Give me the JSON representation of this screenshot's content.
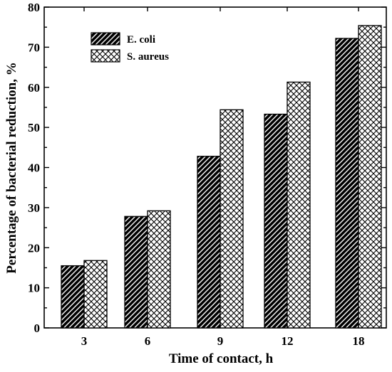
{
  "chart_data": {
    "type": "bar",
    "categories": [
      "3",
      "6",
      "9",
      "12",
      "18"
    ],
    "series": [
      {
        "name": "E. coli",
        "values": [
          15.5,
          27.8,
          42.8,
          53.3,
          72.2
        ],
        "pattern": "dense-diagonal-hatch",
        "color": "#000000"
      },
      {
        "name": "S. aureus",
        "values": [
          16.8,
          29.2,
          54.4,
          61.3,
          75.4
        ],
        "pattern": "crosshatch",
        "color": "#000000"
      }
    ],
    "title": "",
    "xlabel": "Time of contact, h",
    "ylabel": "Percentage of bacterial reduction, %",
    "ylim": [
      0,
      80
    ],
    "yticks": [
      "0",
      "10",
      "20",
      "30",
      "40",
      "50",
      "60",
      "70",
      "80"
    ],
    "grid": false,
    "legend_position": "top-left"
  }
}
